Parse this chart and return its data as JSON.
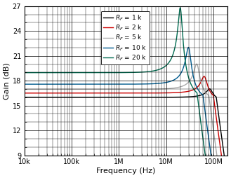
{
  "xlabel": "Frequency (Hz)",
  "ylabel": "Gain (dB)",
  "xlim": [
    10000,
    200000000
  ],
  "ylim": [
    9,
    27
  ],
  "yticks": [
    9,
    12,
    15,
    18,
    21,
    24,
    27
  ],
  "xtick_labels": [
    "10k",
    "100k",
    "1M",
    "10M",
    "100M"
  ],
  "xtick_values": [
    10000,
    100000,
    1000000,
    10000000,
    100000000
  ],
  "colors": [
    "#000000",
    "#cc0000",
    "#aaaaaa",
    "#005b8e",
    "#006b50"
  ],
  "flat_gain_dB": 15.56,
  "curve_params": [
    {
      "G0_dB": 15.56,
      "peak_freq": 85000000,
      "peak_dB": 17.0,
      "f3dB": 115000000,
      "Q": 3.5,
      "label": "1 k"
    },
    {
      "G0_dB": 15.56,
      "peak_freq": 65000000,
      "peak_dB": 18.5,
      "f3dB": 100000000,
      "Q": 3.5,
      "label": "2 k"
    },
    {
      "G0_dB": 15.56,
      "peak_freq": 45000000,
      "peak_dB": 20.0,
      "f3dB": 80000000,
      "Q": 3.8,
      "label": "5 k"
    },
    {
      "G0_dB": 15.56,
      "peak_freq": 30000000,
      "peak_dB": 22.0,
      "f3dB": 60000000,
      "Q": 4.2,
      "label": "10 k"
    },
    {
      "G0_dB": 15.56,
      "peak_freq": 20000000,
      "peak_dB": 26.8,
      "f3dB": 45000000,
      "Q": 5.5,
      "label": "20 k"
    }
  ],
  "background_color": "#ffffff",
  "font_size_labels": 8,
  "font_size_ticks": 7,
  "font_size_legend": 6.5,
  "line_width": 1.0
}
